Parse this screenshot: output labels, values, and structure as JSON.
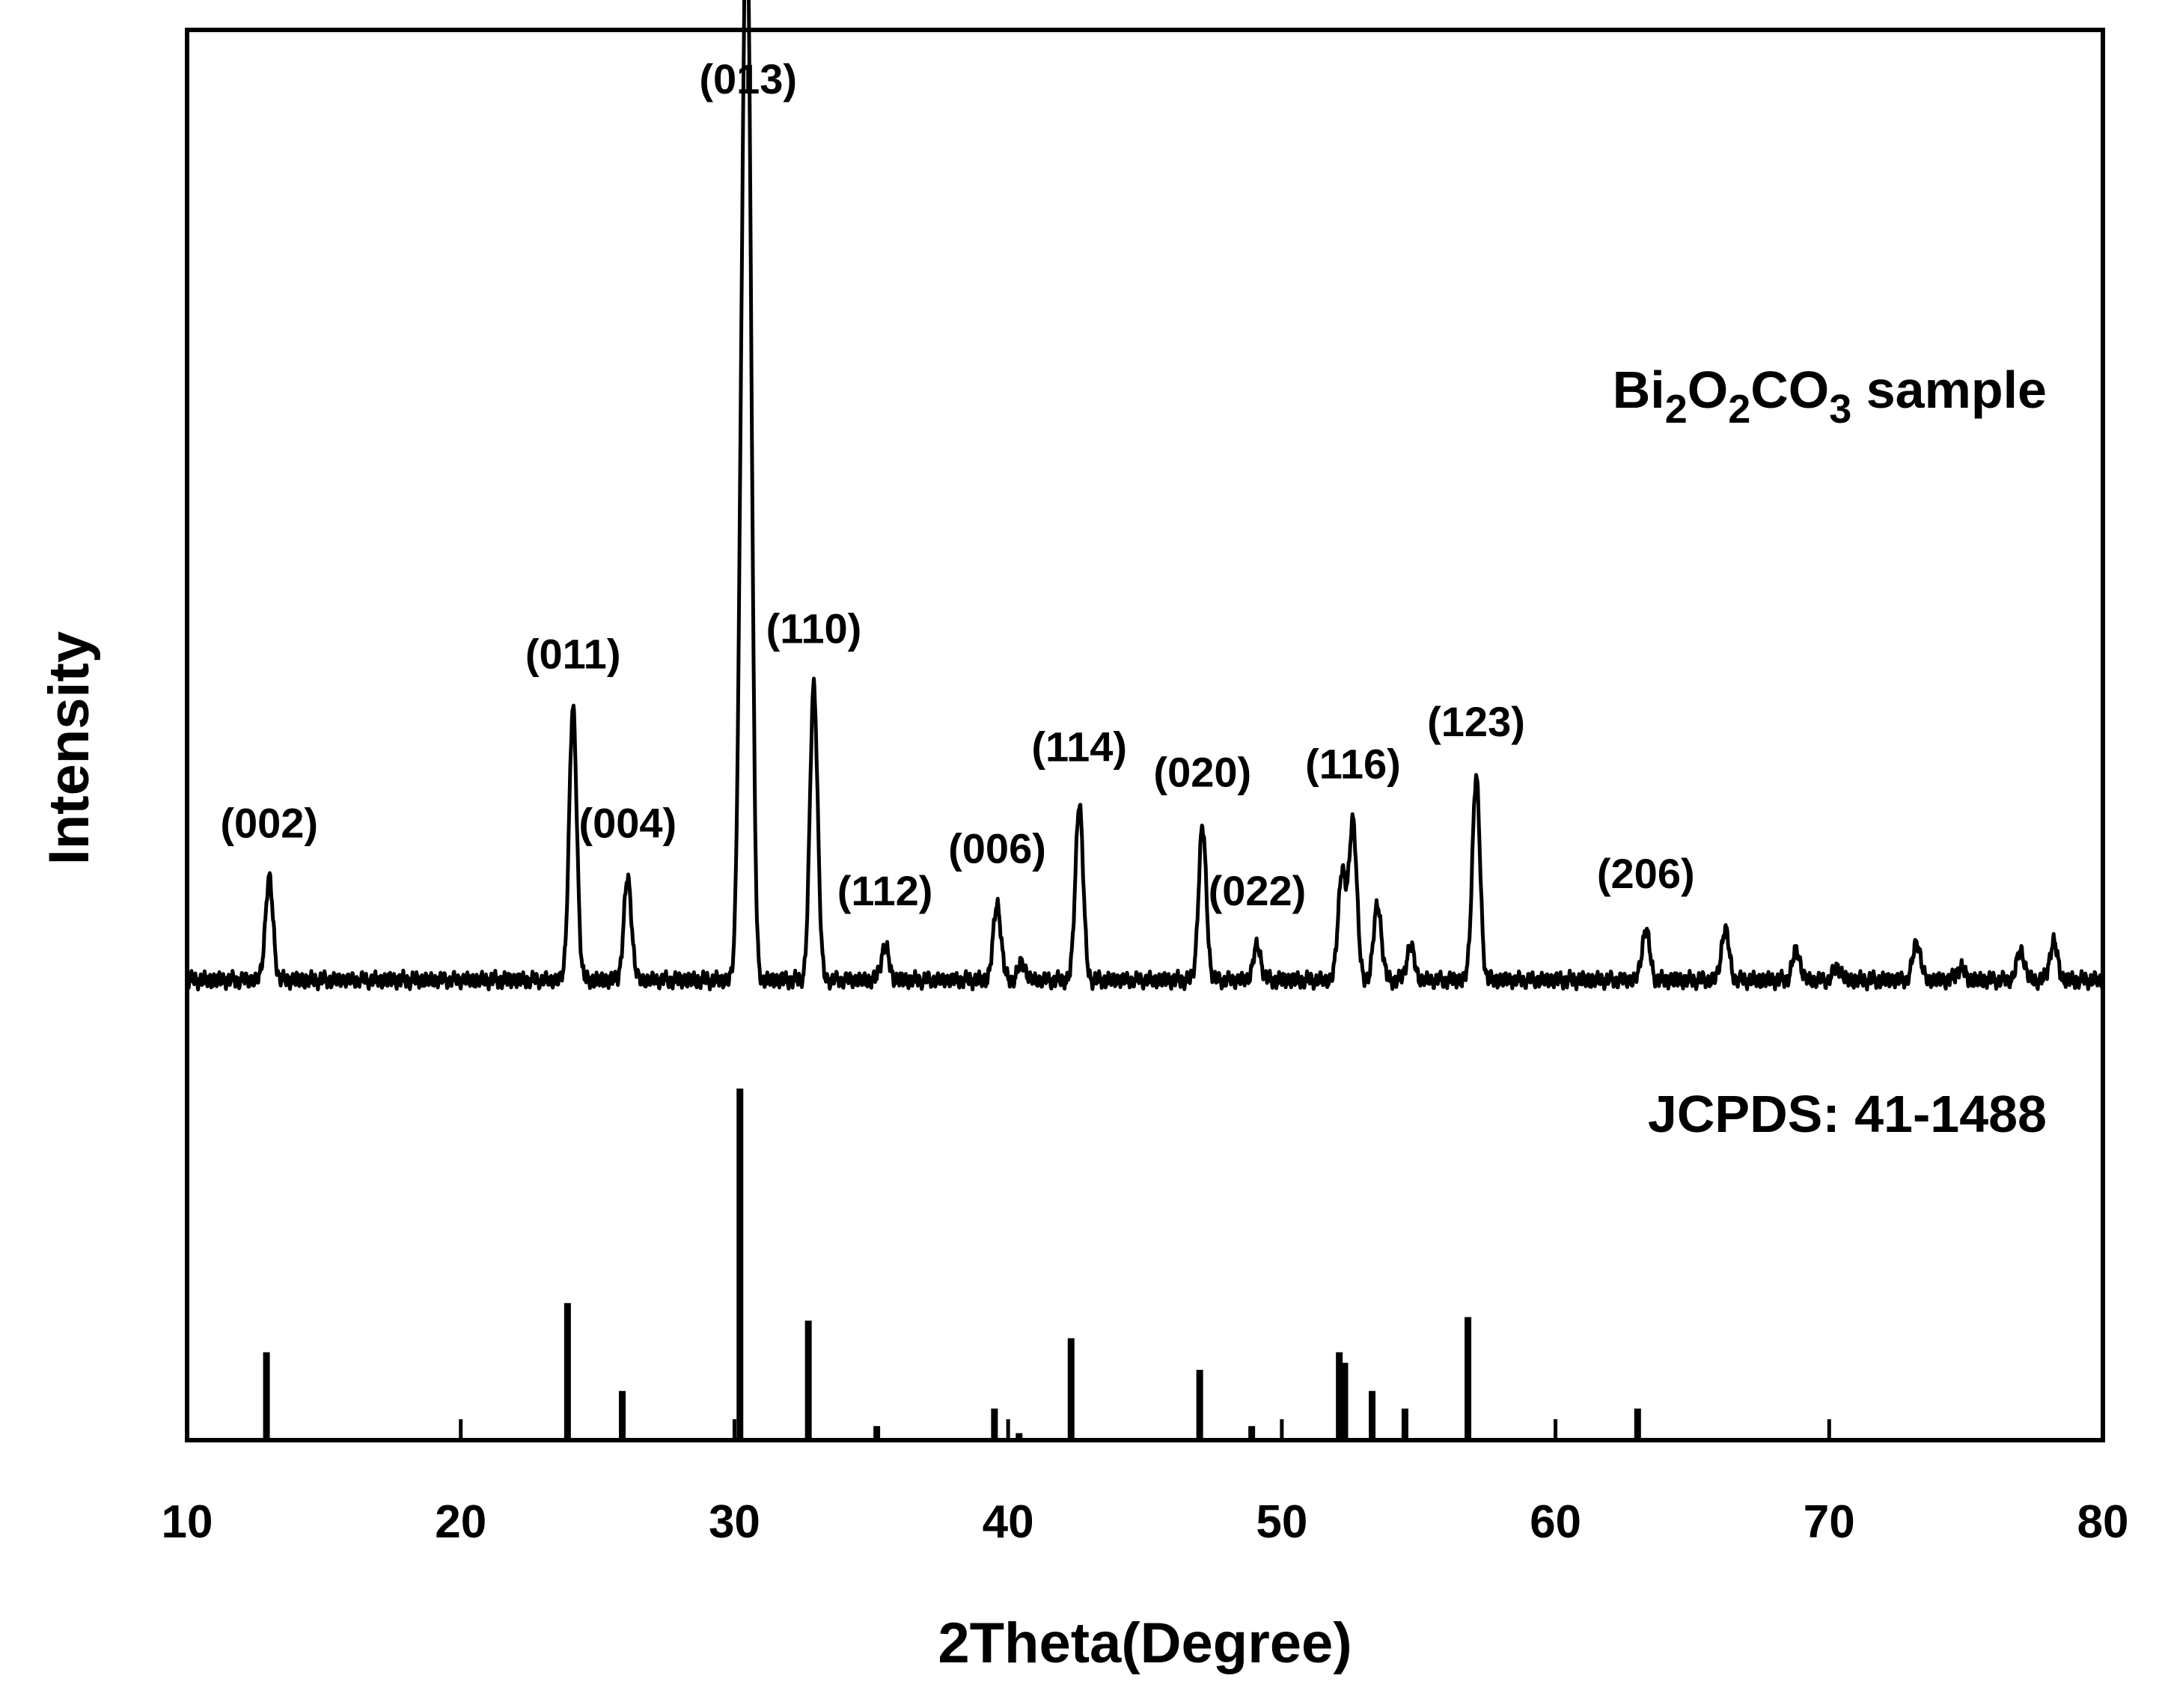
{
  "chart_data": {
    "type": "line",
    "title": "",
    "xlabel": "2Theta(Degree)",
    "ylabel": "Intensity",
    "xlim": [
      10,
      80
    ],
    "xticks": [
      10,
      20,
      30,
      40,
      50,
      60,
      70,
      80
    ],
    "grid": false,
    "series": [
      {
        "name": "Bi2O2CO3 sample",
        "label_parts": {
          "base1": "Bi",
          "sub1": "2",
          "base2": "O",
          "sub2": "2",
          "base3": "CO",
          "sub3": "3",
          "tail": " sample"
        },
        "style": "line",
        "baseline": 0,
        "peaks": [
          {
            "x": 13.0,
            "h": 12,
            "label": "(002)"
          },
          {
            "x": 24.1,
            "h": 32,
            "label": "(011)"
          },
          {
            "x": 26.1,
            "h": 12,
            "label": "(004)"
          },
          {
            "x": 30.3,
            "h": 60
          },
          {
            "x": 30.5,
            "h": 100,
            "label": "(013)"
          },
          {
            "x": 32.9,
            "h": 35,
            "label": "(110)"
          },
          {
            "x": 35.5,
            "h": 4,
            "label": "(112)"
          },
          {
            "x": 39.6,
            "h": 9,
            "label": "(006)"
          },
          {
            "x": 40.5,
            "h": 2
          },
          {
            "x": 42.6,
            "h": 21,
            "label": "(114)"
          },
          {
            "x": 47.1,
            "h": 18,
            "label": "(020)"
          },
          {
            "x": 49.1,
            "h": 4,
            "label": "(022)"
          },
          {
            "x": 52.2,
            "h": 13
          },
          {
            "x": 52.6,
            "h": 19,
            "label": "(116)"
          },
          {
            "x": 53.5,
            "h": 9
          },
          {
            "x": 54.7,
            "h": 4
          },
          {
            "x": 57.1,
            "h": 24,
            "label": "(123)"
          },
          {
            "x": 63.3,
            "h": 6,
            "label": "(206)"
          },
          {
            "x": 66.2,
            "h": 6
          },
          {
            "x": 68.8,
            "h": 3.5
          },
          {
            "x": 70.3,
            "h": 1.5
          },
          {
            "x": 73.2,
            "h": 4.5
          },
          {
            "x": 74.8,
            "h": 1.5
          },
          {
            "x": 77.0,
            "h": 3.5
          },
          {
            "x": 78.2,
            "h": 4.5
          }
        ]
      },
      {
        "name": "JCPDS: 41-1488",
        "style": "stick",
        "sticks": [
          {
            "x": 12.9,
            "h": 25
          },
          {
            "x": 23.9,
            "h": 39
          },
          {
            "x": 25.9,
            "h": 14
          },
          {
            "x": 30.2,
            "h": 100
          },
          {
            "x": 32.7,
            "h": 34
          },
          {
            "x": 35.2,
            "h": 4
          },
          {
            "x": 39.5,
            "h": 9
          },
          {
            "x": 40.4,
            "h": 2
          },
          {
            "x": 42.3,
            "h": 29
          },
          {
            "x": 47.0,
            "h": 20
          },
          {
            "x": 48.9,
            "h": 4
          },
          {
            "x": 52.1,
            "h": 25
          },
          {
            "x": 52.3,
            "h": 22
          },
          {
            "x": 53.3,
            "h": 14
          },
          {
            "x": 54.5,
            "h": 9
          },
          {
            "x": 56.8,
            "h": 35
          },
          {
            "x": 63.0,
            "h": 9
          }
        ]
      }
    ]
  }
}
